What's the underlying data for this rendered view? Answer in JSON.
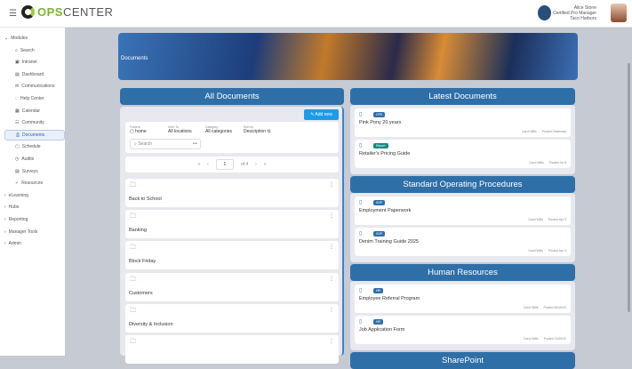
{
  "header": {
    "logo_text_bold": "OPS",
    "logo_text": "CENTER",
    "user_name": "Alice Stone",
    "user_role": "Certified Pro Manager",
    "user_company": "Taco Harbors"
  },
  "sidebar": {
    "section": "Modules",
    "items": [
      "Search",
      "Intranet",
      "Dashboard",
      "Communications",
      "Help Center",
      "Calendar",
      "Community",
      "Documents",
      "Schedule",
      "Audits",
      "Surveys",
      "Resources"
    ],
    "active": "Documents",
    "groups": [
      "eLearning",
      "Hubs",
      "Reporting",
      "Manager Tools",
      "Admin"
    ]
  },
  "banner": {
    "title": "Documents"
  },
  "all_documents": {
    "title": "All Documents",
    "add_new": "Add new",
    "filters": [
      {
        "label": "Folders",
        "value": "home"
      },
      {
        "label": "Sent To",
        "value": "All locations"
      },
      {
        "label": "Category",
        "value": "All categories"
      },
      {
        "label": "Sort by",
        "value": "Description"
      }
    ],
    "search_placeholder": "Search",
    "page": "1",
    "page_of": "of 4",
    "folders": [
      "Back to School",
      "Banking",
      "Block Friday",
      "Customers",
      "Diversity & Inclusion",
      ""
    ]
  },
  "sections": [
    {
      "title": "Latest Documents",
      "docs": [
        {
          "tag": "OPS",
          "name": "Pink Pony 20 years",
          "author": "Carol Wills",
          "posted": "Posted Yesterday"
        },
        {
          "tag": "Report",
          "name": "Retailer's Pricing Guide",
          "author": "Carol Wills",
          "posted": "Posted Jul 8"
        }
      ]
    },
    {
      "title": "Standard Operating Procedures",
      "docs": [
        {
          "tag": "SOP",
          "name": "Employment Paperwork",
          "author": "Carol Wills",
          "posted": "Posted Apr 3"
        },
        {
          "tag": "SOP",
          "name": "Denim Training Guide 2025",
          "author": "Carol Wills",
          "posted": "Posted Apr 3"
        }
      ]
    },
    {
      "title": "Human Resources",
      "docs": [
        {
          "tag": "HR",
          "name": "Employee Referral Program",
          "author": "Carol Wills",
          "posted": "Posted 06/16/22"
        },
        {
          "tag": "HR",
          "name": "Job Application Form",
          "author": "Carol Wills",
          "posted": "Posted 11/09/22"
        }
      ]
    },
    {
      "title": "SharePoint",
      "docs": []
    }
  ],
  "colors": {
    "primary": "#2f6fa8",
    "accent": "#1e9be8",
    "report_tag": "#168a80"
  }
}
